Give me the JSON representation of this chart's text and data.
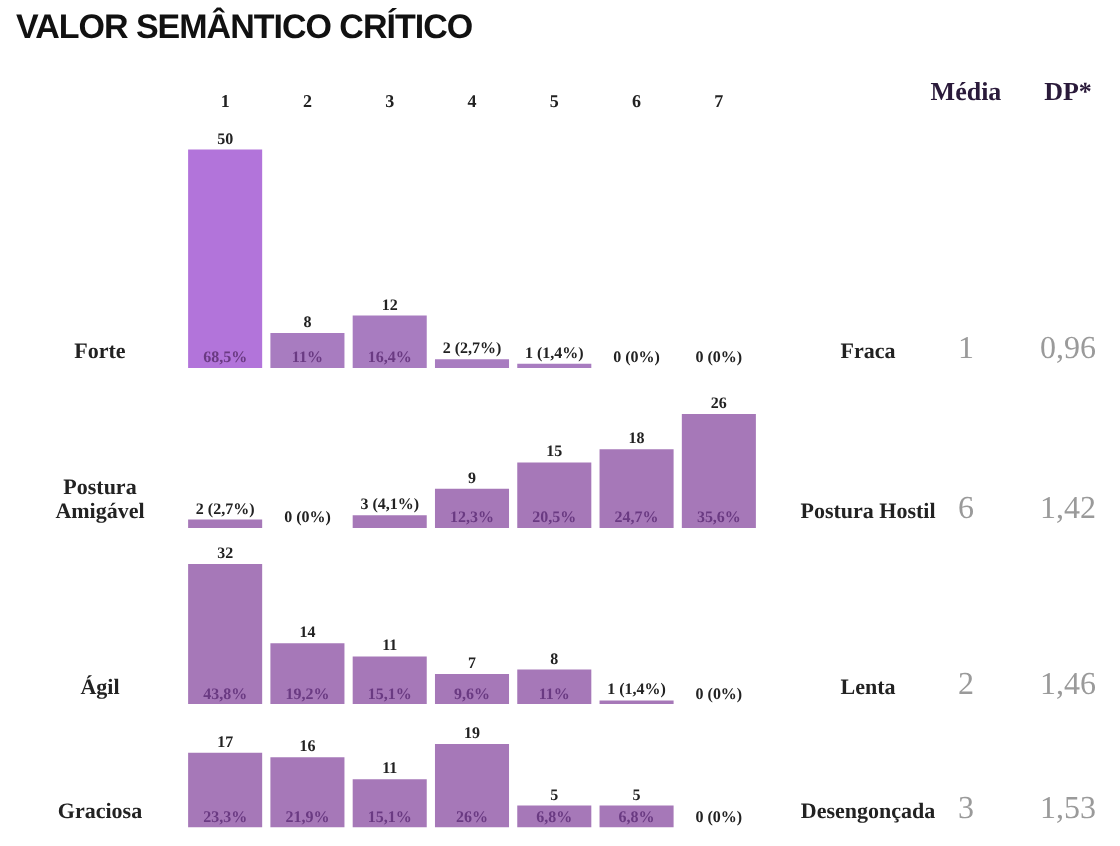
{
  "chart_data": [
    {
      "type": "bar",
      "title": "VALOR SEMÂNTICO CRÍTICO",
      "categories": [
        "1",
        "2",
        "3",
        "4",
        "5",
        "6",
        "7"
      ],
      "values": [
        50,
        8,
        12,
        2,
        1,
        0,
        0
      ],
      "colors": [
        "#b274da",
        "#a87cc0",
        "#a87cc0",
        "#a87cc0",
        "#a87cc0",
        "#a87cc0",
        "#a87cc0"
      ],
      "value_labels": [
        "50",
        "8",
        "12",
        "2 (2,7%)",
        "1 (1,4%)",
        "0 (0%)",
        "0 (0%)"
      ],
      "ylabel": "Forte",
      "y2label": "Fraca",
      "tick_labels": "x",
      "annotations": [
        "Média",
        "DP*",
        "1",
        "0,96",
        "6",
        "1,42",
        "2",
        "1,46",
        "3",
        "1,53",
        {
          "text": "68,5%",
          "x": "1",
          "y": 0
        },
        {
          "text": "11%",
          "x": "2",
          "y": 0
        },
        {
          "text": "16,4%",
          "x": "3",
          "y": 0
        }
      ]
    },
    {
      "type": "bar",
      "categories": [
        "1",
        "2",
        "3",
        "4",
        "5",
        "6",
        "7"
      ],
      "values": [
        2,
        0,
        3,
        9,
        15,
        18,
        26
      ],
      "color": "#a678b8",
      "value_labels": [
        "2 (2,7%)",
        "0 (0%)",
        "3 (4,1%)",
        "9",
        "15",
        "18",
        "26"
      ],
      "ylabel": "Postura Amigável",
      "y2label": "Postura Hostil",
      "tick_labels": false,
      "annotations": [
        {
          "text": "12,3%",
          "x": "4",
          "y": 0
        },
        {
          "text": "20,5%",
          "x": "5",
          "y": 0
        },
        {
          "text": "24,7%",
          "x": "6",
          "y": 0
        },
        {
          "text": "35,6%",
          "x": "7",
          "y": 0
        }
      ]
    },
    {
      "type": "bar",
      "categories": [
        "1",
        "2",
        "3",
        "4",
        "5",
        "6",
        "7"
      ],
      "values": [
        32,
        14,
        11,
        7,
        8,
        1,
        0
      ],
      "color": "#a678b8",
      "value_labels": [
        "32",
        "14",
        "11",
        "7",
        "8",
        "1 (1,4%)",
        "0 (0%)"
      ],
      "ylabel": "Ágil",
      "y2label": "Lenta",
      "tick_labels": false,
      "annotations": [
        {
          "text": "43,8%",
          "x": "1",
          "y": 0
        },
        {
          "text": "19,2%",
          "x": "2",
          "y": 0
        },
        {
          "text": "15,1%",
          "x": "3",
          "y": 0
        },
        {
          "text": "9,6%",
          "x": "4",
          "y": 0
        },
        {
          "text": "11%",
          "x": "5",
          "y": 0
        }
      ]
    },
    {
      "type": "bar",
      "categories": [
        "1",
        "2",
        "3",
        "4",
        "5",
        "6",
        "7"
      ],
      "values": [
        17,
        16,
        11,
        19,
        5,
        5,
        0
      ],
      "color": "#a678b8",
      "value_labels": [
        "17",
        "16",
        "11",
        "19",
        "5",
        "5",
        "0 (0%)"
      ],
      "ylabel": "Graciosa",
      "y2label": "Desengonçada",
      "tick_labels": false,
      "annotations": [
        {
          "text": "23,3%",
          "x": "1",
          "y": 0
        },
        {
          "text": "21,9%",
          "x": "2",
          "y": 0
        },
        {
          "text": "15,1%",
          "x": "3",
          "y": 0
        },
        {
          "text": "26%",
          "x": "4",
          "y": 0
        },
        {
          "text": "6,8%",
          "x": "5",
          "y": 0
        },
        {
          "text": "6,8%",
          "x": "6",
          "y": 0
        }
      ]
    }
  ]
}
